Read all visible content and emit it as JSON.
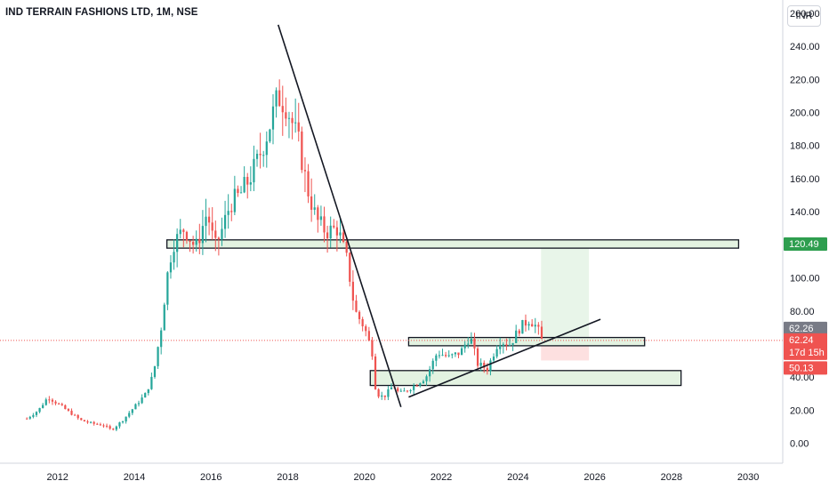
{
  "header": {
    "title": "IND TERRAIN FASHIONS LTD, 1M, NSE"
  },
  "currency": "INR",
  "colors": {
    "up": "#26a69a",
    "down": "#ef5350",
    "zone_fill": "#e3f2e1",
    "target_fill": "#e8f5e9",
    "stop_fill": "#fde0e0",
    "last_price": "#ef5350",
    "high_tag": "#2e9e4f",
    "gray_tag": "#787b86"
  },
  "price_tags": {
    "zone_top": {
      "value": 120.49,
      "label": "120.49"
    },
    "prev_close": {
      "value": 62.26,
      "label": "62.26"
    },
    "last": {
      "value": 62.24,
      "label": "62.24",
      "countdown": "17d 15h"
    },
    "stop": {
      "value": 50.13,
      "label": "50.13"
    }
  },
  "chart_data": {
    "type": "candlestick",
    "title": "IND TERRAIN FASHIONS LTD, 1M, NSE",
    "y_axis": {
      "unit": "INR",
      "ticks": [
        "0.00",
        "20.00",
        "40.00",
        "60.00",
        "80.00",
        "100.00",
        "120.00",
        "140.00",
        "160.00",
        "180.00",
        "200.00",
        "220.00",
        "240.00",
        "260.00"
      ],
      "range": [
        -12,
        268
      ]
    },
    "x_axis": {
      "ticks": [
        "2012",
        "2014",
        "2016",
        "2018",
        "2020",
        "2022",
        "2024",
        "2026",
        "2028",
        "2030"
      ],
      "range": [
        2010.5,
        2030.9
      ]
    },
    "close_path": [
      [
        2011.2,
        15
      ],
      [
        2011.5,
        20
      ],
      [
        2011.75,
        28
      ],
      [
        2012.0,
        24
      ],
      [
        2012.3,
        19
      ],
      [
        2012.6,
        14
      ],
      [
        2012.9,
        12
      ],
      [
        2013.2,
        11
      ],
      [
        2013.4,
        8
      ],
      [
        2013.7,
        14
      ],
      [
        2014.0,
        22
      ],
      [
        2014.3,
        30
      ],
      [
        2014.5,
        42
      ],
      [
        2014.7,
        70
      ],
      [
        2014.85,
        100
      ],
      [
        2015.0,
        120
      ],
      [
        2015.3,
        130
      ],
      [
        2015.6,
        118
      ],
      [
        2015.9,
        140
      ],
      [
        2016.1,
        118
      ],
      [
        2016.3,
        130
      ],
      [
        2016.5,
        145
      ],
      [
        2016.75,
        150
      ],
      [
        2017.0,
        160
      ],
      [
        2017.2,
        170
      ],
      [
        2017.5,
        190
      ],
      [
        2017.75,
        210
      ],
      [
        2017.95,
        205
      ],
      [
        2018.1,
        195
      ],
      [
        2018.3,
        180
      ],
      [
        2018.5,
        155
      ],
      [
        2018.75,
        135
      ],
      [
        2019.0,
        128
      ],
      [
        2019.3,
        130
      ],
      [
        2019.55,
        110
      ],
      [
        2019.75,
        80
      ],
      [
        2020.0,
        70
      ],
      [
        2020.2,
        55
      ],
      [
        2020.3,
        30
      ],
      [
        2020.5,
        28
      ],
      [
        2020.75,
        35
      ],
      [
        2020.9,
        30
      ],
      [
        2021.1,
        32
      ],
      [
        2021.3,
        35
      ],
      [
        2021.6,
        40
      ],
      [
        2021.9,
        55
      ],
      [
        2022.2,
        52
      ],
      [
        2022.5,
        55
      ],
      [
        2022.75,
        65
      ],
      [
        2022.95,
        48
      ],
      [
        2023.2,
        45
      ],
      [
        2023.5,
        62
      ],
      [
        2023.8,
        60
      ],
      [
        2024.05,
        70
      ],
      [
        2024.3,
        75
      ],
      [
        2024.5,
        70
      ],
      [
        2024.62,
        62
      ]
    ],
    "trendlines": [
      {
        "from": [
          2017.75,
          253
        ],
        "to": [
          2020.95,
          22
        ]
      },
      {
        "from": [
          2021.15,
          28
        ],
        "to": [
          2026.15,
          75
        ]
      }
    ],
    "zones": [
      {
        "x": [
          2014.85,
          2029.75
        ],
        "y": [
          118,
          123
        ]
      },
      {
        "x": [
          2021.15,
          2027.3
        ],
        "y": [
          59,
          64
        ]
      },
      {
        "x": [
          2020.15,
          2028.25
        ],
        "y": [
          35,
          44
        ]
      }
    ],
    "position": {
      "x": [
        2024.6,
        2025.85
      ],
      "entry": 62.24,
      "target": 120.49,
      "stop": 50.13
    }
  }
}
